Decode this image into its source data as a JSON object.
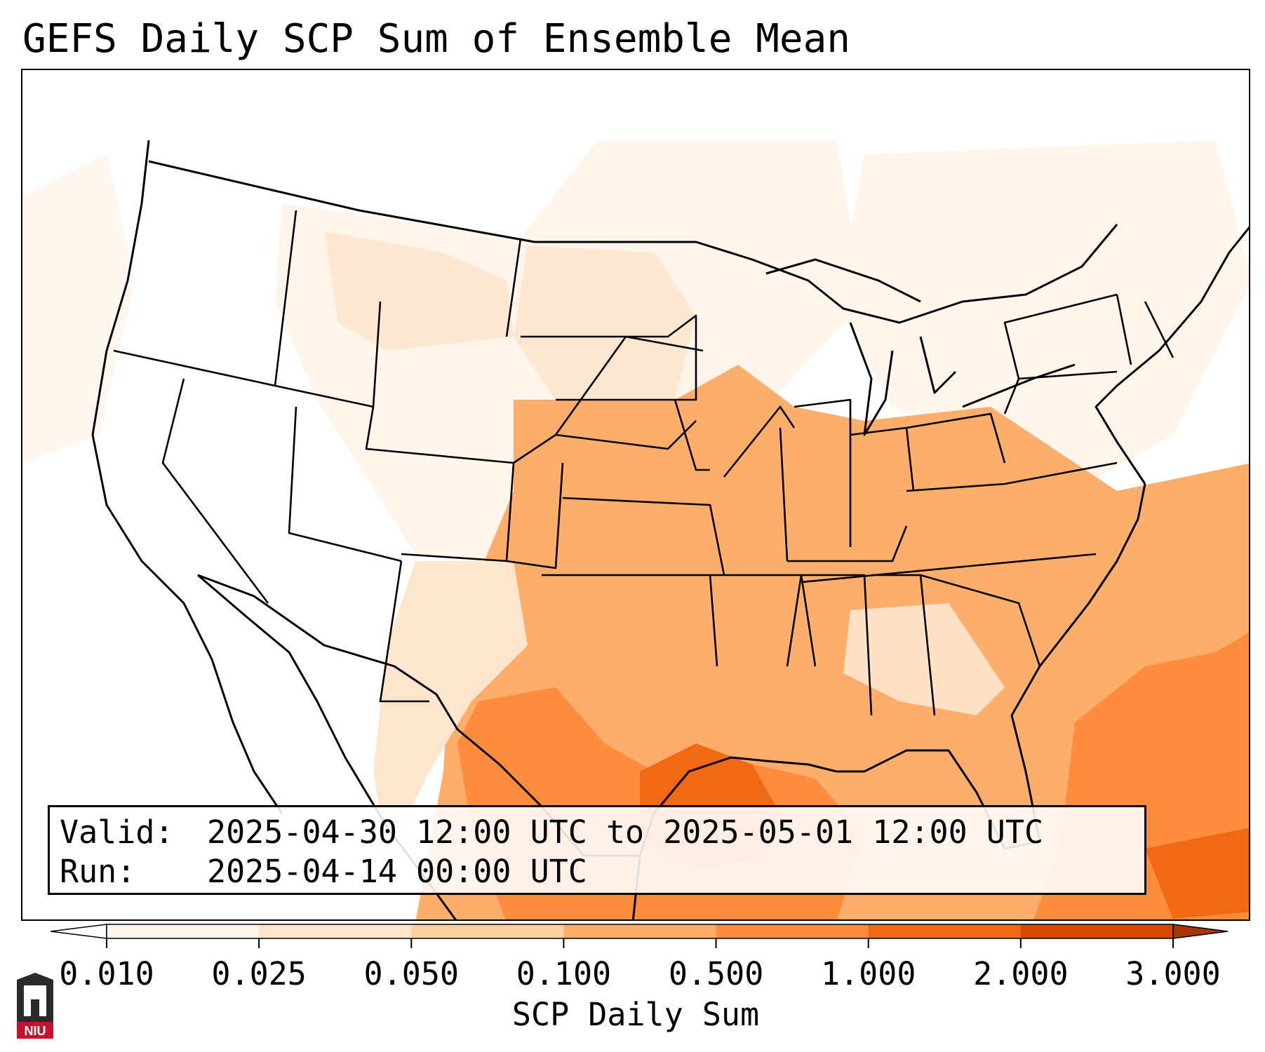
{
  "title": "GEFS Daily SCP Sum of Ensemble Mean",
  "info": {
    "valid_label": "Valid:",
    "valid_value": "2025-04-30 12:00 UTC to 2025-05-01 12:00 UTC",
    "run_label": "Run:",
    "run_value": "2025-04-14 00:00 UTC"
  },
  "colorbar": {
    "label": "SCP Daily Sum",
    "ticks": [
      "0.010",
      "0.025",
      "0.050",
      "0.100",
      "0.500",
      "1.000",
      "2.000",
      "3.000"
    ],
    "colors": [
      "#fff5eb",
      "#fee6ce",
      "#fdd0a2",
      "#fdae6b",
      "#fd8d3c",
      "#f16913",
      "#d94801"
    ],
    "under_color": "#ffffff",
    "over_color": "#a63603",
    "extend": "both"
  },
  "logo": {
    "text": "NIU",
    "color": "#c8102e"
  },
  "map": {
    "region": "Contiguous United States",
    "colormap": "Oranges"
  }
}
